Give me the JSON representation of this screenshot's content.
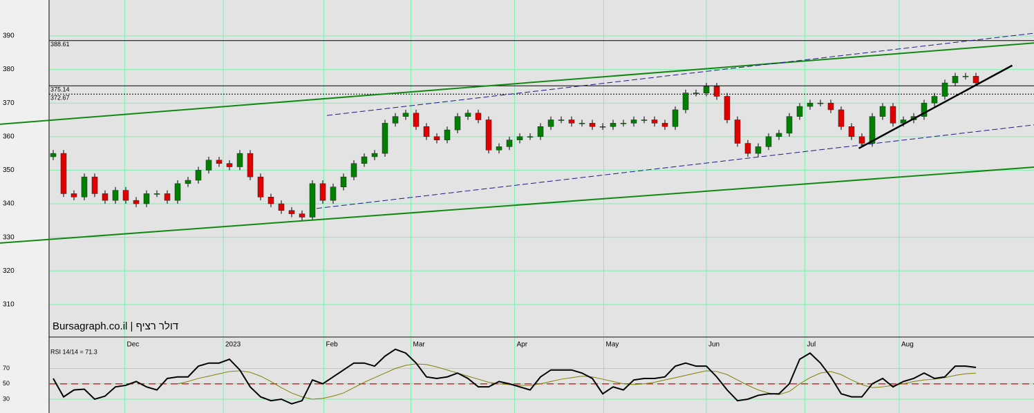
{
  "chart_data": [
    {
      "type": "candlestick",
      "watermark": "Bursagraph.co.il | דולר רציף",
      "colors": {
        "up": "#008000",
        "down": "#e00000",
        "wick": "#000000",
        "grid": "#80eeb0",
        "background": "#e3e3e3"
      },
      "grid": true,
      "xlim": [
        -0.4,
        94.6
      ],
      "xticks": [
        {
          "value": 6.9,
          "label": "Dec"
        },
        {
          "value": 16.4,
          "label": "2023"
        },
        {
          "value": 26.1,
          "label": "Feb"
        },
        {
          "value": 34.5,
          "label": "Mar"
        },
        {
          "value": 44.5,
          "label": "Apr"
        },
        {
          "value": 53.1,
          "label": "May"
        },
        {
          "value": 63.0,
          "label": "Jun"
        },
        {
          "value": 72.5,
          "label": "Jul"
        },
        {
          "value": 81.6,
          "label": "Aug"
        }
      ],
      "ylim": [
        300.5,
        400.7
      ],
      "yticks": [
        310,
        320,
        330,
        340,
        350,
        360,
        370,
        380,
        390
      ],
      "open": [
        354,
        355,
        343,
        342,
        348,
        343,
        341,
        344,
        341,
        340,
        343,
        343,
        341,
        346,
        347,
        350,
        353,
        352,
        351,
        355,
        348,
        342,
        340,
        338,
        337,
        336,
        346,
        341,
        345,
        348,
        352,
        354,
        355,
        364,
        366,
        367,
        363,
        360,
        359,
        362,
        366,
        367,
        365,
        356,
        357,
        359,
        360,
        360,
        363,
        365,
        365,
        364,
        364,
        363,
        363,
        364,
        364,
        365,
        365,
        364,
        363,
        368,
        373,
        373,
        375,
        372,
        365,
        358,
        355,
        357,
        360,
        361,
        366,
        369,
        370,
        370,
        368,
        363,
        360,
        358,
        366,
        369,
        364,
        365,
        366,
        370,
        372,
        376,
        378,
        378
      ],
      "high": [
        356,
        356,
        344,
        349,
        349,
        344,
        345,
        345,
        342,
        344,
        344,
        344,
        347,
        348,
        351,
        354,
        354,
        353,
        356,
        356,
        349,
        343,
        341,
        339,
        338,
        347,
        347,
        346,
        349,
        353,
        355,
        356,
        365,
        367,
        368,
        368,
        364,
        361,
        363,
        367,
        368,
        368,
        366,
        358,
        360,
        361,
        361,
        364,
        366,
        366,
        366,
        365,
        365,
        364,
        365,
        365,
        366,
        366,
        366,
        365,
        369,
        374,
        374,
        376,
        376,
        373,
        366,
        359,
        358,
        361,
        362,
        367,
        370,
        371,
        371,
        371,
        369,
        364,
        361,
        367,
        370,
        370,
        366,
        367,
        371,
        373,
        377,
        379,
        379,
        379
      ],
      "low": [
        353,
        342,
        341,
        341,
        342,
        340,
        340,
        340,
        339,
        339,
        342,
        340,
        340,
        345,
        346,
        349,
        351,
        350,
        350,
        347,
        341,
        339,
        337,
        336,
        335,
        335,
        340,
        340,
        344,
        347,
        351,
        353,
        354,
        363,
        365,
        362,
        359,
        358,
        358,
        361,
        365,
        364,
        355,
        355,
        356,
        358,
        359,
        359,
        362,
        364,
        363,
        363,
        362,
        362,
        362,
        363,
        363,
        364,
        363,
        362,
        362,
        367,
        372,
        372,
        371,
        364,
        357,
        354,
        354,
        356,
        359,
        360,
        365,
        368,
        369,
        367,
        362,
        359,
        357,
        357,
        365,
        363,
        363,
        364,
        365,
        369,
        371,
        375,
        377,
        375
      ],
      "close": [
        355,
        343,
        342,
        348,
        343,
        341,
        344,
        341,
        340,
        343,
        343,
        341,
        346,
        347,
        350,
        353,
        352,
        351,
        355,
        348,
        342,
        340,
        338,
        337,
        336,
        346,
        341,
        345,
        348,
        352,
        354,
        355,
        364,
        366,
        367,
        363,
        360,
        359,
        362,
        366,
        367,
        365,
        356,
        357,
        359,
        360,
        360,
        363,
        365,
        365,
        364,
        364,
        363,
        363,
        364,
        364,
        365,
        365,
        364,
        363,
        368,
        373,
        373,
        375,
        372,
        365,
        358,
        355,
        357,
        360,
        361,
        366,
        369,
        370,
        370,
        368,
        363,
        360,
        358,
        366,
        369,
        364,
        365,
        366,
        370,
        372,
        376,
        378,
        378,
        376
      ],
      "levels": [
        {
          "value": 388.61,
          "style": "solid"
        },
        {
          "value": 375.14,
          "style": "solid"
        },
        {
          "value": 372.67,
          "style": "dotted"
        }
      ],
      "trendlines": [
        {
          "color": "#118811",
          "style": "solid",
          "width": 2,
          "x": [
            -5.13,
            94.6
          ],
          "y": [
            363.7,
            387.9
          ]
        },
        {
          "color": "#118811",
          "style": "solid",
          "width": 2,
          "x": [
            -5.13,
            94.6
          ],
          "y": [
            328.3,
            350.9
          ]
        },
        {
          "color": "#1a1a90",
          "style": "dashed",
          "width": 1,
          "x": [
            26.4,
            94.6
          ],
          "y": [
            366.3,
            390.8
          ]
        },
        {
          "color": "#1a1a90",
          "style": "dashed",
          "width": 1,
          "x": [
            25.4,
            94.6
          ],
          "y": [
            338.6,
            363.5
          ]
        },
        {
          "color": "#000000",
          "style": "solid",
          "width": 2.5,
          "x": [
            77.7,
            92.5
          ],
          "y": [
            356.5,
            381.2
          ]
        }
      ]
    },
    {
      "type": "line",
      "title": "RSI 14/14 = 71.3",
      "xlim": [
        -0.4,
        94.6
      ],
      "ylim": [
        12,
        110
      ],
      "yticks": [
        30,
        50,
        70
      ],
      "reference_line": {
        "value": 50,
        "color": "#dd2222"
      },
      "series": [
        {
          "color": "#000000",
          "values": [
            57,
            33,
            42,
            43,
            30,
            34,
            46,
            48,
            53,
            46,
            42,
            57,
            59,
            59,
            73,
            77,
            77,
            82,
            68,
            46,
            33,
            28,
            30,
            24,
            28,
            55,
            50,
            59,
            68,
            77,
            77,
            73,
            86,
            95,
            90,
            77,
            59,
            57,
            59,
            64,
            57,
            46,
            46,
            53,
            50,
            46,
            42,
            59,
            68,
            68,
            68,
            64,
            57,
            37,
            46,
            42,
            55,
            57,
            57,
            59,
            73,
            77,
            73,
            73,
            59,
            42,
            28,
            30,
            35,
            37,
            37,
            50,
            82,
            90,
            77,
            59,
            37,
            33,
            33,
            50,
            57,
            46,
            53,
            57,
            64,
            57,
            59,
            73,
            73,
            71.3
          ]
        },
        {
          "color": "#808000",
          "values": [
            null,
            null,
            null,
            null,
            null,
            null,
            null,
            null,
            null,
            null,
            null,
            null,
            50,
            53,
            57,
            60,
            63,
            66,
            67,
            65,
            60,
            53,
            45,
            38,
            33,
            30,
            31,
            34,
            38,
            45,
            52,
            58,
            64,
            70,
            74,
            76,
            75,
            72,
            68,
            64,
            60,
            56,
            52,
            50,
            49,
            48,
            48,
            50,
            53,
            56,
            58,
            60,
            59,
            56,
            53,
            50,
            49,
            50,
            52,
            55,
            58,
            61,
            64,
            67,
            66,
            62,
            55,
            48,
            42,
            38,
            36,
            40,
            50,
            58,
            64,
            66,
            62,
            55,
            49,
            45,
            46,
            48,
            50,
            53,
            55,
            56,
            58,
            61,
            63,
            64
          ]
        }
      ]
    }
  ]
}
